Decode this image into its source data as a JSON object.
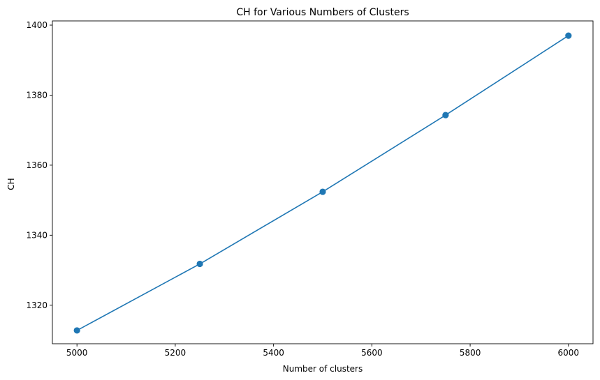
{
  "chart_data": {
    "type": "line",
    "title": "CH for Various Numbers of Clusters",
    "xlabel": "Number of clusters",
    "ylabel": "CH",
    "x": [
      5000,
      5250,
      5500,
      5750,
      6000
    ],
    "series": [
      {
        "values": [
          1312.8,
          1331.8,
          1352.4,
          1374.3,
          1397.0
        ],
        "color": "#1f77b4",
        "marker": "circle"
      }
    ],
    "xlim": [
      4950,
      6050
    ],
    "ylim": [
      1309.0,
      1401.2
    ],
    "xticks": [
      5000,
      5200,
      5400,
      5600,
      5800,
      6000
    ],
    "yticks": [
      1320,
      1340,
      1360,
      1380,
      1400
    ],
    "grid": false,
    "legend": false
  }
}
